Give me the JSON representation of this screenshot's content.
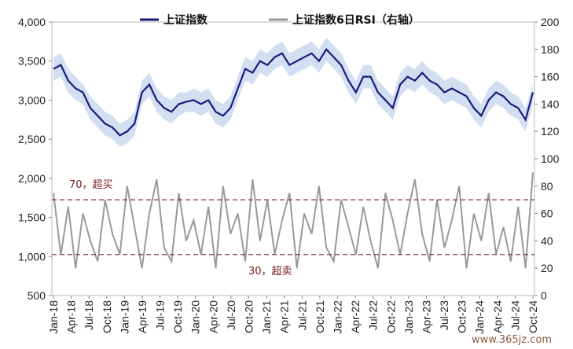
{
  "chart_data": {
    "type": "line",
    "legend": [
      {
        "name": "上证指数",
        "color": "#1a1a7a"
      },
      {
        "name": "上证指数6日RSI（右轴）",
        "color": "#999999"
      }
    ],
    "legend_position": "top-center",
    "x_tick_labels": [
      "Jan-18",
      "Apr-18",
      "Jul-18",
      "Oct-18",
      "Jan-19",
      "Apr-19",
      "Jul-19",
      "Oct-19",
      "Jan-20",
      "Apr-20",
      "Jul-20",
      "Oct-20",
      "Jan-21",
      "Apr-21",
      "Jul-21",
      "Oct-21",
      "Jan-22",
      "Apr-22",
      "Jul-22",
      "Oct-22",
      "Jan-23",
      "Apr-23",
      "Jul-23",
      "Oct-23",
      "Jan-24",
      "Apr-24",
      "Jul-24",
      "Oct-24"
    ],
    "y_left": {
      "range": [
        500,
        4000
      ],
      "ticks": [
        "500",
        "1,000",
        "1,500",
        "2,000",
        "2,500",
        "3,000",
        "3,500",
        "4,000"
      ]
    },
    "y_right": {
      "range": [
        0,
        200
      ],
      "ticks": [
        "0",
        "20",
        "40",
        "60",
        "80",
        "100",
        "120",
        "140",
        "160",
        "180",
        "200"
      ]
    },
    "series": [
      {
        "name": "上证指数",
        "axis": "left",
        "values": [
          3400,
          3450,
          3250,
          3150,
          3100,
          2900,
          2800,
          2700,
          2650,
          2550,
          2600,
          2700,
          3100,
          3200,
          3000,
          2900,
          2850,
          2950,
          2980,
          3000,
          2950,
          3000,
          2850,
          2800,
          2900,
          3150,
          3400,
          3350,
          3500,
          3450,
          3550,
          3600,
          3450,
          3500,
          3550,
          3600,
          3500,
          3650,
          3550,
          3450,
          3250,
          3100,
          3300,
          3300,
          3100,
          3000,
          2900,
          3200,
          3300,
          3250,
          3350,
          3250,
          3200,
          3100,
          3150,
          3100,
          3050,
          2900,
          2800,
          3000,
          3100,
          3050,
          2950,
          2900,
          2750,
          3100
        ]
      },
      {
        "name": "上证指数6日RSI（右轴）",
        "axis": "right",
        "values": [
          75,
          30,
          65,
          20,
          60,
          40,
          25,
          70,
          45,
          30,
          80,
          50,
          20,
          60,
          85,
          35,
          25,
          75,
          40,
          55,
          30,
          65,
          20,
          80,
          45,
          60,
          25,
          85,
          40,
          70,
          30,
          55,
          75,
          20,
          60,
          45,
          80,
          35,
          25,
          70,
          50,
          30,
          65,
          40,
          20,
          75,
          55,
          30,
          60,
          85,
          45,
          25,
          70,
          35,
          55,
          80,
          20,
          60,
          40,
          75,
          30,
          50,
          25,
          65,
          20,
          90
        ]
      },
      {
        "name": "band",
        "axis": "left",
        "note": "shaded band around index (min/max)",
        "upper": [
          3550,
          3600,
          3400,
          3300,
          3200,
          3050,
          2950,
          2850,
          2800,
          2700,
          2750,
          2850,
          3250,
          3350,
          3150,
          3050,
          3000,
          3100,
          3100,
          3150,
          3100,
          3150,
          3000,
          2950,
          3050,
          3300,
          3550,
          3500,
          3650,
          3600,
          3700,
          3750,
          3600,
          3650,
          3700,
          3750,
          3650,
          3800,
          3700,
          3600,
          3400,
          3250,
          3450,
          3450,
          3250,
          3150,
          3050,
          3350,
          3450,
          3400,
          3500,
          3400,
          3350,
          3250,
          3300,
          3250,
          3200,
          3050,
          2950,
          3150,
          3250,
          3200,
          3100,
          3050,
          2900,
          3200
        ],
        "lower": [
          3250,
          3300,
          3100,
          3000,
          2950,
          2750,
          2650,
          2550,
          2500,
          2400,
          2450,
          2550,
          2950,
          3050,
          2850,
          2750,
          2700,
          2800,
          2850,
          2850,
          2800,
          2850,
          2700,
          2650,
          2750,
          3000,
          3250,
          3200,
          3350,
          3300,
          3400,
          3450,
          3300,
          3350,
          3400,
          3450,
          3350,
          3500,
          3400,
          3300,
          3100,
          2950,
          3150,
          3150,
          2950,
          2850,
          2750,
          3050,
          3150,
          3100,
          3200,
          3100,
          3050,
          2950,
          3000,
          2950,
          2900,
          2750,
          2650,
          2850,
          2950,
          2900,
          2800,
          2750,
          2600,
          2950
        ]
      }
    ],
    "reference_lines": [
      {
        "value": 70,
        "axis": "right",
        "label": "70，超买",
        "color": "#7a1a1a"
      },
      {
        "value": 30,
        "axis": "right",
        "label": "30，超卖",
        "color": "#7a1a1a"
      }
    ],
    "watermark": "www.365jz.com"
  }
}
